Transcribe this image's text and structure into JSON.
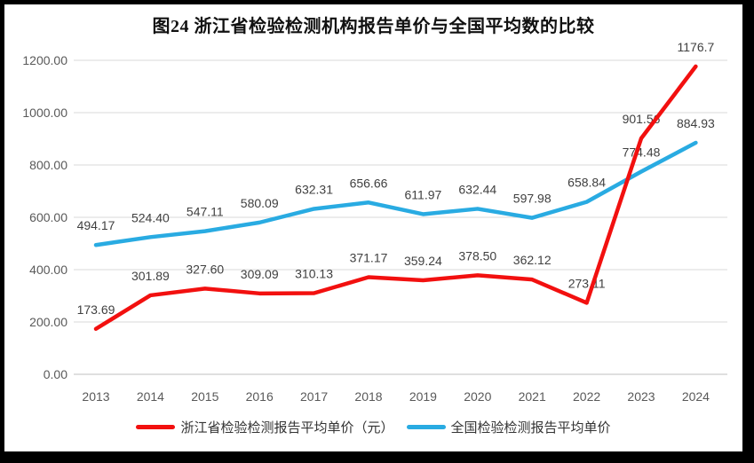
{
  "title": "图24  浙江省检验检测机构报告单价与全国平均数的比较",
  "chart_data": {
    "type": "line",
    "title": "图24  浙江省检验检测机构报告单价与全国平均数的比较",
    "x": [
      "2013",
      "2014",
      "2015",
      "2016",
      "2017",
      "2018",
      "2019",
      "2020",
      "2021",
      "2022",
      "2023",
      "2024"
    ],
    "series": [
      {
        "name": "浙江省检验检测报告平均单价（元）",
        "color": "#f2100f",
        "values": [
          173.69,
          301.89,
          327.6,
          309.09,
          310.13,
          371.17,
          359.24,
          378.5,
          362.12,
          273.11,
          901.56,
          1176.7
        ],
        "labels": [
          "173.69",
          "301.89",
          "327.60",
          "309.09",
          "310.13",
          "371.17",
          "359.24",
          "378.50",
          "362.12",
          "273.11",
          "901.56",
          "1176.7"
        ]
      },
      {
        "name": "全国检验检测报告平均单价",
        "color": "#29abe2",
        "values": [
          494.17,
          524.4,
          547.11,
          580.09,
          632.31,
          656.66,
          611.97,
          632.44,
          597.98,
          658.84,
          774.48,
          884.93
        ],
        "labels": [
          "494.17",
          "524.40",
          "547.11",
          "580.09",
          "632.31",
          "656.66",
          "611.97",
          "632.44",
          "597.98",
          "658.84",
          "774.48",
          "884.93"
        ]
      }
    ],
    "ylim": [
      0,
      1200
    ],
    "ytick_step": 200,
    "ytick_labels": [
      "0.00",
      "200.00",
      "400.00",
      "600.00",
      "800.00",
      "1000.00",
      "1200.00"
    ],
    "grid": true,
    "legend_position": "bottom"
  },
  "colors": {
    "grid": "#d9d9d9",
    "axis_line": "#bfbfbf",
    "axis_text": "#595959",
    "point_label_text": "#404040",
    "frame": "#000000"
  }
}
